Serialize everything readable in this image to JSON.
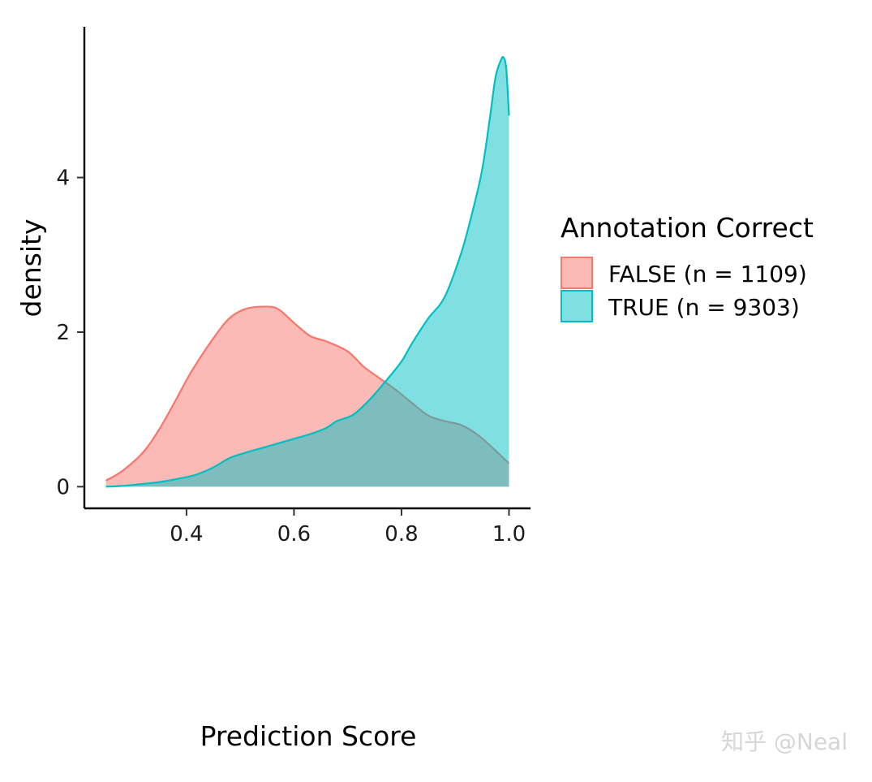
{
  "chart_data": {
    "type": "area",
    "subtype": "density",
    "title": "",
    "xlabel": "Prediction Score",
    "ylabel": "density",
    "xlim": [
      0.21,
      1.04
    ],
    "ylim": [
      -0.28,
      5.95
    ],
    "x_ticks": [
      0.4,
      0.6,
      0.8,
      1.0
    ],
    "x_tick_labels": [
      "0.4",
      "0.6",
      "0.8",
      "1.0"
    ],
    "y_ticks": [
      0,
      2,
      4
    ],
    "y_tick_labels": [
      "0",
      "2",
      "4"
    ],
    "grid": false,
    "legend": {
      "title": "Annotation Correct",
      "placement": "right"
    },
    "series": [
      {
        "name": "FALSE (n = 1109)",
        "fill": "#F8766D",
        "fill_opacity": 0.5,
        "stroke": "#F8766D",
        "points": [
          [
            0.25,
            0.08
          ],
          [
            0.28,
            0.2
          ],
          [
            0.32,
            0.45
          ],
          [
            0.35,
            0.75
          ],
          [
            0.38,
            1.12
          ],
          [
            0.41,
            1.5
          ],
          [
            0.45,
            1.92
          ],
          [
            0.48,
            2.18
          ],
          [
            0.51,
            2.3
          ],
          [
            0.545,
            2.33
          ],
          [
            0.57,
            2.3
          ],
          [
            0.6,
            2.12
          ],
          [
            0.63,
            1.95
          ],
          [
            0.66,
            1.88
          ],
          [
            0.7,
            1.75
          ],
          [
            0.73,
            1.55
          ],
          [
            0.76,
            1.4
          ],
          [
            0.79,
            1.25
          ],
          [
            0.82,
            1.08
          ],
          [
            0.85,
            0.92
          ],
          [
            0.88,
            0.85
          ],
          [
            0.91,
            0.8
          ],
          [
            0.94,
            0.68
          ],
          [
            0.97,
            0.5
          ],
          [
            1.0,
            0.3
          ]
        ]
      },
      {
        "name": "TRUE (n = 9303)",
        "fill": "#00BFC4",
        "fill_opacity": 0.5,
        "stroke": "#00BFC4",
        "points": [
          [
            0.25,
            0.0
          ],
          [
            0.28,
            0.01
          ],
          [
            0.31,
            0.03
          ],
          [
            0.35,
            0.06
          ],
          [
            0.39,
            0.11
          ],
          [
            0.42,
            0.16
          ],
          [
            0.45,
            0.25
          ],
          [
            0.48,
            0.37
          ],
          [
            0.51,
            0.44
          ],
          [
            0.54,
            0.5
          ],
          [
            0.57,
            0.56
          ],
          [
            0.6,
            0.62
          ],
          [
            0.63,
            0.68
          ],
          [
            0.66,
            0.76
          ],
          [
            0.68,
            0.85
          ],
          [
            0.71,
            0.93
          ],
          [
            0.74,
            1.12
          ],
          [
            0.77,
            1.36
          ],
          [
            0.8,
            1.62
          ],
          [
            0.82,
            1.86
          ],
          [
            0.85,
            2.18
          ],
          [
            0.88,
            2.45
          ],
          [
            0.91,
            3.0
          ],
          [
            0.93,
            3.5
          ],
          [
            0.95,
            4.1
          ],
          [
            0.965,
            4.8
          ],
          [
            0.975,
            5.3
          ],
          [
            0.985,
            5.52
          ],
          [
            0.99,
            5.55
          ],
          [
            0.995,
            5.4
          ],
          [
            1.0,
            4.8
          ]
        ]
      }
    ]
  },
  "watermark": "知乎 @Neal"
}
